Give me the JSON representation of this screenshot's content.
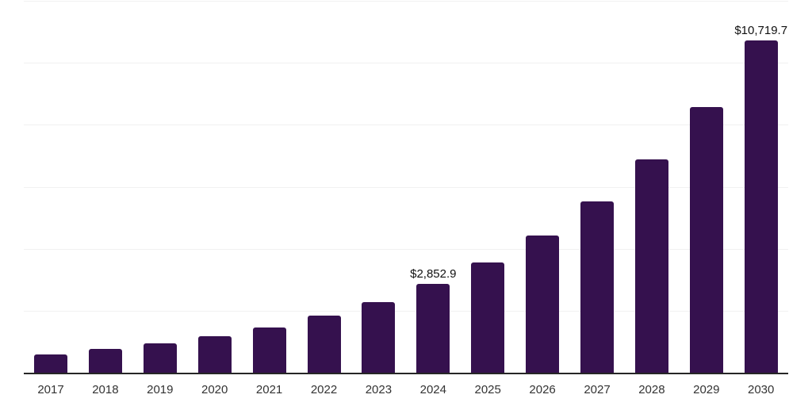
{
  "chart_data": {
    "type": "bar",
    "title": "",
    "xlabel": "",
    "ylabel": "",
    "categories": [
      "2017",
      "2018",
      "2019",
      "2020",
      "2021",
      "2022",
      "2023",
      "2024",
      "2025",
      "2026",
      "2027",
      "2028",
      "2029",
      "2030"
    ],
    "values": [
      600,
      760,
      950,
      1180,
      1460,
      1835,
      2280,
      2852.9,
      3555,
      4420,
      5525,
      6890,
      8575,
      10719.7
    ],
    "data_labels": {
      "2024": "$2,852.9",
      "2030": "$10,719.7"
    },
    "ylim": [
      0,
      12000
    ],
    "gridline_step": 2000,
    "grid": "horizontal",
    "legend": "none",
    "y_tick_labels": "none",
    "colors": {
      "bar": "#35114E",
      "background": "#FFFFFF",
      "gridline": "#F1F1F1",
      "axis_line": "#262626",
      "tick_label": "#333333",
      "data_label": "#111111"
    }
  }
}
